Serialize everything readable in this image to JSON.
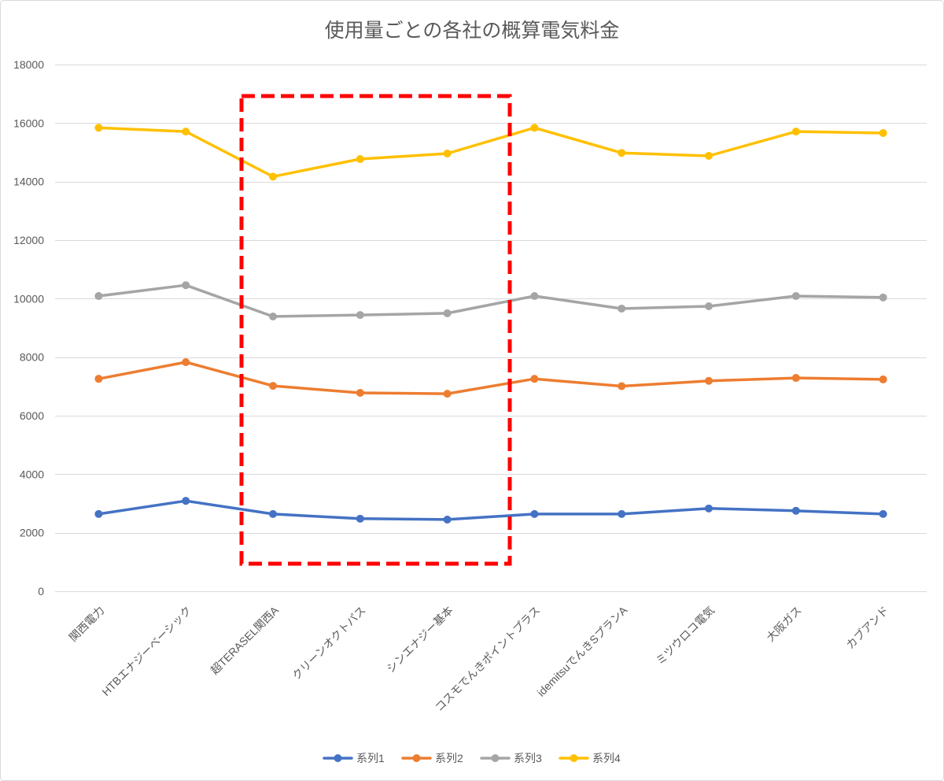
{
  "chart_data": {
    "type": "line",
    "title": "使用量ごとの各社の概算電気料金",
    "categories": [
      "関西電力",
      "HTBエナジーベーシック",
      "超TERASEL関西A",
      "クリーンオクトパス",
      "シンエナジー基本",
      "コスモでんきポイントプラス",
      "idemitsuでんきSプランA",
      "ミツウロコ電気",
      "大阪ガス",
      "カブアンド"
    ],
    "ylim": [
      0,
      18000
    ],
    "yticks": [
      0,
      2000,
      4000,
      6000,
      8000,
      10000,
      12000,
      14000,
      16000,
      18000
    ],
    "grid": true,
    "legend": "bottom",
    "series": [
      {
        "name": "系列1",
        "color": "#4472C4",
        "values": [
          2640,
          3090,
          2640,
          2480,
          2450,
          2640,
          2640,
          2830,
          2750,
          2640
        ]
      },
      {
        "name": "系列2",
        "color": "#ED7D31",
        "values": [
          7260,
          7830,
          7020,
          6780,
          6750,
          7260,
          7010,
          7190,
          7290,
          7240
        ]
      },
      {
        "name": "系列3",
        "color": "#A5A5A5",
        "values": [
          10090,
          10460,
          9390,
          9440,
          9500,
          10090,
          9660,
          9740,
          10090,
          10040
        ]
      },
      {
        "name": "系列4",
        "color": "#FFC000",
        "values": [
          15840,
          15710,
          14170,
          14770,
          14960,
          15840,
          14980,
          14880,
          15710,
          15660
        ]
      }
    ],
    "highlight_color": "#FF0000",
    "gridline_color": "#D9D9D9",
    "text_color": "#595959"
  }
}
